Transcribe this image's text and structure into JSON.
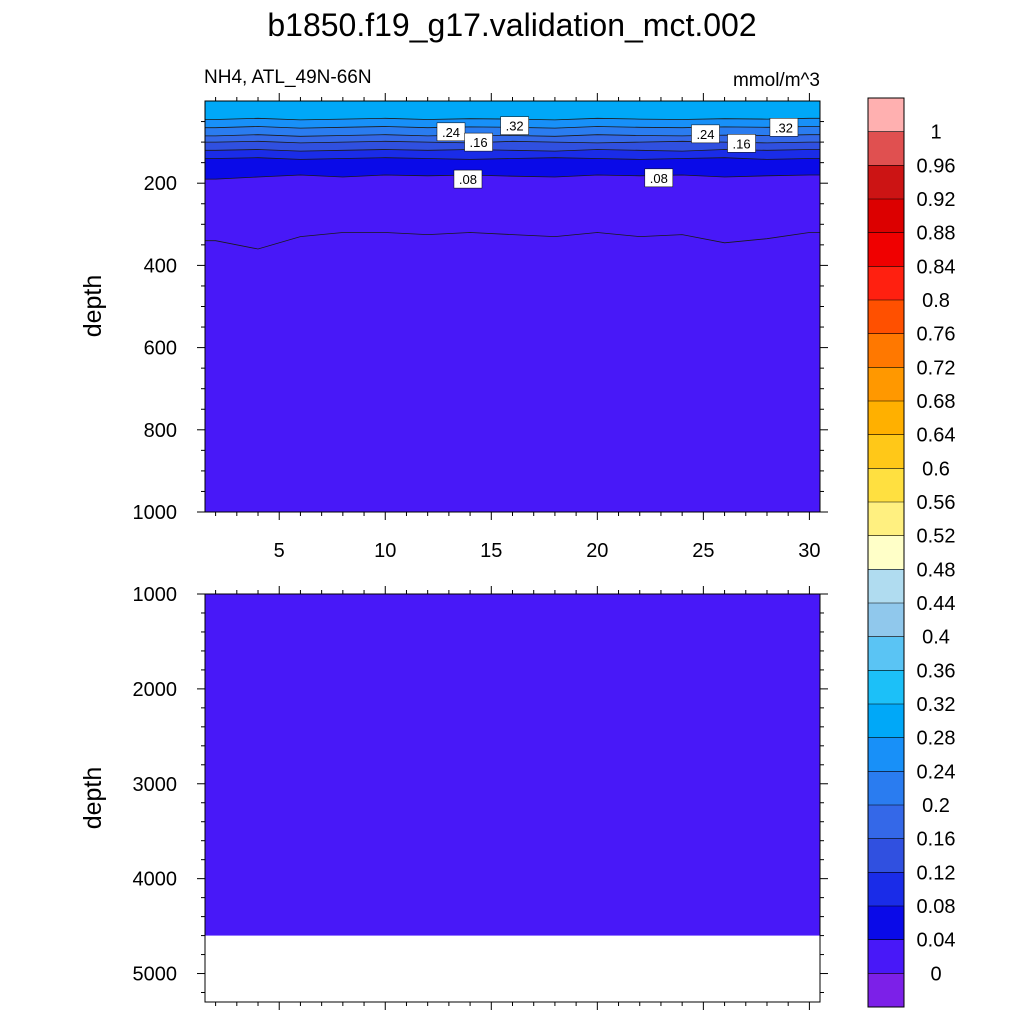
{
  "title": "b1850.f19_g17.validation_mct.002",
  "variable_label": "NH4, ATL_49N-66N",
  "units_label": "mmol/m^3",
  "chart_data": [
    {
      "type": "heatmap",
      "panel": "upper",
      "ylabel": "depth",
      "xlabel": "",
      "xlim": [
        1.5,
        30.5
      ],
      "ylim": [
        1000,
        0
      ],
      "x_ticks": [
        5,
        10,
        15,
        20,
        25,
        30
      ],
      "y_ticks": [
        200,
        400,
        600,
        800,
        1000
      ],
      "contour_levels": [
        0.04,
        0.08,
        0.12,
        0.16,
        0.2,
        0.24,
        0.28,
        0.32
      ],
      "contour_labels": [
        ".24",
        ".32",
        ".16",
        ".08",
        ".08",
        ".24",
        ".16",
        ".32"
      ],
      "x": [
        2,
        4,
        6,
        8,
        10,
        12,
        14,
        16,
        18,
        20,
        22,
        24,
        26,
        28,
        30
      ],
      "depth_of_contours": [
        {
          "level": 0.04,
          "depth": [
            340,
            360,
            330,
            320,
            320,
            325,
            320,
            325,
            330,
            320,
            330,
            325,
            345,
            335,
            320
          ]
        },
        {
          "level": 0.08,
          "depth": [
            190,
            185,
            180,
            185,
            180,
            182,
            180,
            183,
            185,
            180,
            182,
            180,
            185,
            182,
            180
          ]
        },
        {
          "level": 0.12,
          "depth": [
            140,
            138,
            142,
            140,
            138,
            140,
            142,
            140,
            138,
            140,
            142,
            140,
            138,
            142,
            140
          ]
        },
        {
          "level": 0.16,
          "depth": [
            120,
            118,
            122,
            120,
            118,
            120,
            118,
            120,
            122,
            118,
            120,
            122,
            118,
            120,
            118
          ]
        },
        {
          "level": 0.2,
          "depth": [
            100,
            98,
            102,
            100,
            98,
            100,
            102,
            98,
            100,
            102,
            100,
            98,
            100,
            102,
            100
          ]
        },
        {
          "level": 0.24,
          "depth": [
            85,
            82,
            86,
            84,
            82,
            85,
            83,
            84,
            86,
            82,
            84,
            85,
            83,
            84,
            82
          ]
        },
        {
          "level": 0.28,
          "depth": [
            65,
            62,
            66,
            64,
            62,
            65,
            63,
            64,
            66,
            62,
            64,
            65,
            63,
            64,
            62
          ]
        },
        {
          "level": 0.32,
          "depth": [
            45,
            42,
            46,
            44,
            42,
            45,
            43,
            44,
            46,
            42,
            44,
            45,
            43,
            44,
            42
          ]
        }
      ],
      "surface_value_range": [
        0.32,
        0.36
      ]
    },
    {
      "type": "heatmap",
      "panel": "lower",
      "ylabel": "depth",
      "xlim": [
        1.5,
        30.5
      ],
      "ylim": [
        5300,
        1000
      ],
      "y_ticks": [
        1000,
        2000,
        3000,
        4000,
        5000
      ],
      "fill_value_range": [
        0,
        0.04
      ],
      "no_data_below_depth": 4600
    }
  ],
  "colorbar": {
    "labels": [
      "1",
      "0.96",
      "0.92",
      "0.88",
      "0.84",
      "0.8",
      "0.76",
      "0.72",
      "0.68",
      "0.64",
      "0.6",
      "0.56",
      "0.52",
      "0.48",
      "0.44",
      "0.4",
      "0.36",
      "0.32",
      "0.28",
      "0.24",
      "0.2",
      "0.16",
      "0.12",
      "0.08",
      "0.04",
      "0"
    ],
    "colors": [
      "#ffb0b0",
      "#e05050",
      "#cc1414",
      "#dc0000",
      "#f00000",
      "#ff2010",
      "#ff5000",
      "#ff7800",
      "#ff9800",
      "#ffb000",
      "#ffc818",
      "#ffe040",
      "#fff080",
      "#ffffc8",
      "#b0dcf0",
      "#90c8ec",
      "#5ac4f4",
      "#1cc0f8",
      "#00a8f8",
      "#1890f8",
      "#2a7cf0",
      "#3468e8",
      "#3050e0",
      "#1a2ce8",
      "#0a0ae8",
      "#4818f8",
      "#7c20e8"
    ]
  }
}
